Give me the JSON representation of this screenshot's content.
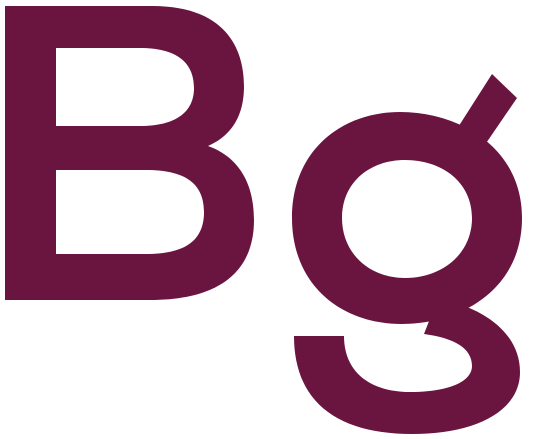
{
  "logo": {
    "text": "Bg",
    "color": "#6a1540",
    "background": "#ffffff"
  }
}
